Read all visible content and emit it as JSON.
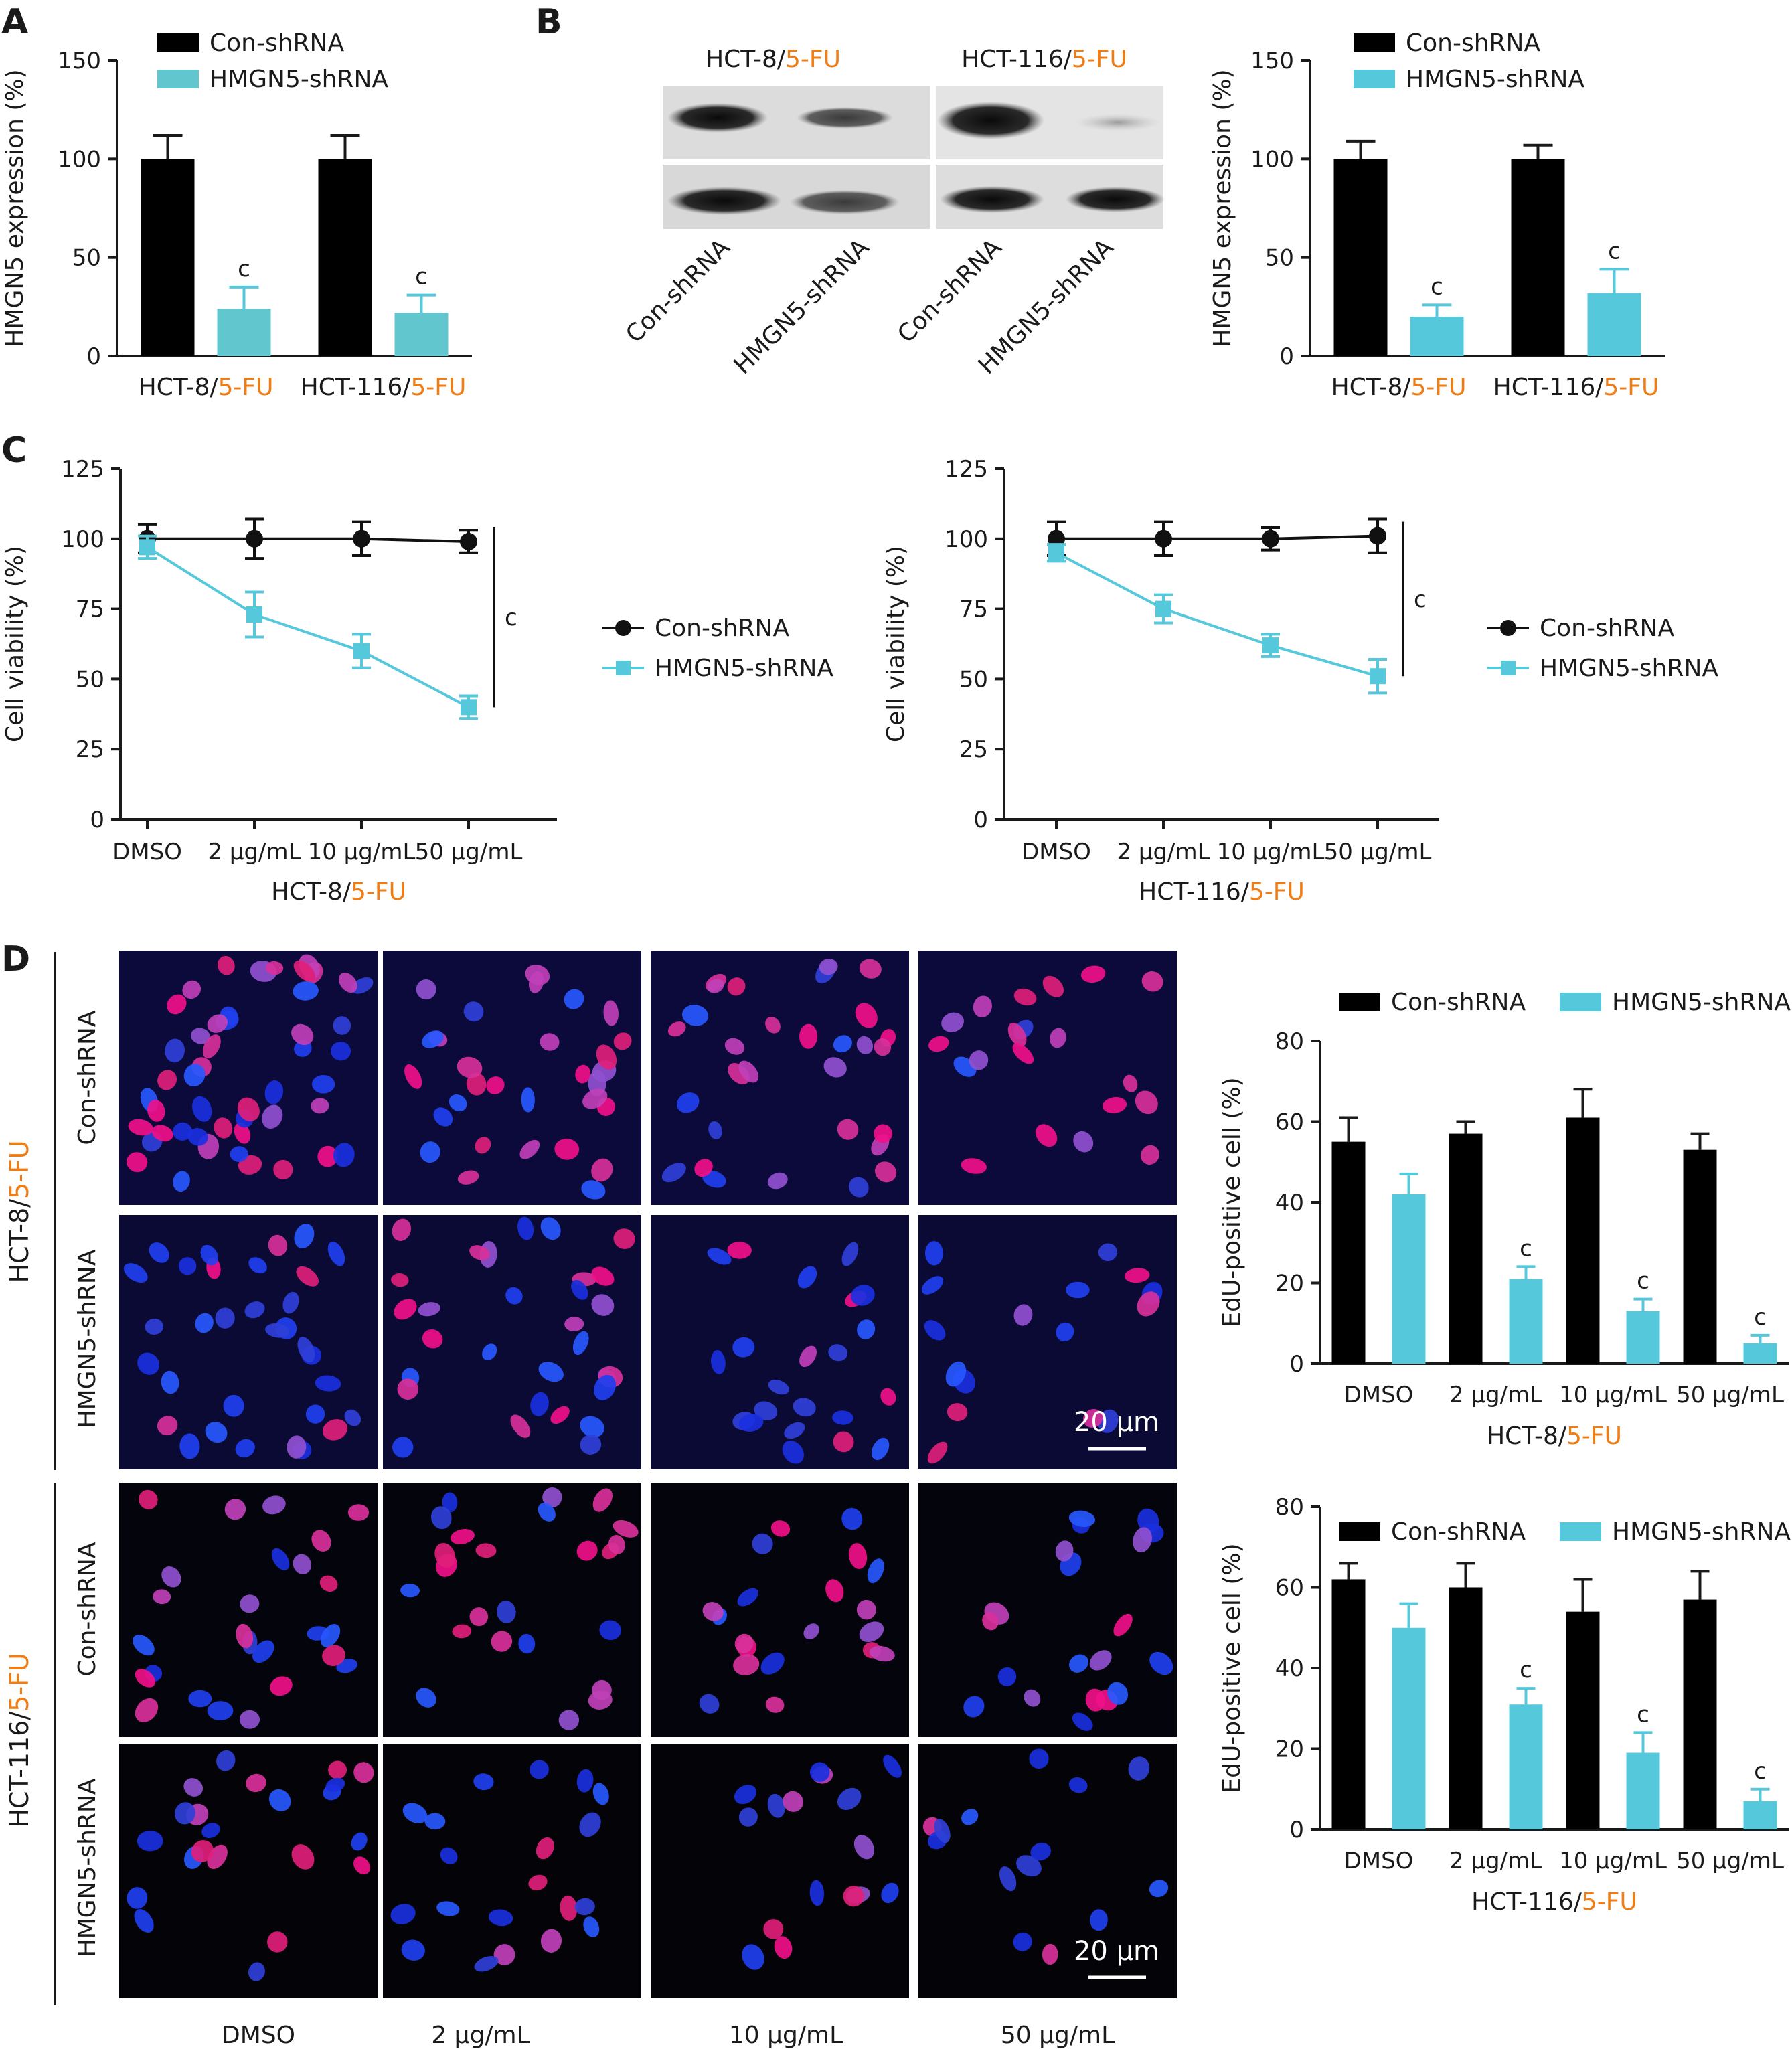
{
  "figure": {
    "panel_labels": [
      "A",
      "B",
      "C",
      "D"
    ],
    "accent_color": "#f07c14",
    "con_color": "#000000",
    "kd_color": "#56c8dc",
    "kd_color_alt": "#62c6cf"
  },
  "blot": {
    "header_hct8": "HCT-8/",
    "header_hct116": "HCT-116/",
    "header_fu": "5-FU",
    "lane_labels": [
      "Con-shRNA",
      "HMGN5-shRNA",
      "Con-shRNA",
      "HMGN5-shRNA"
    ]
  },
  "micro": {
    "row_labels": [
      "Con-shRNA",
      "HMGN5-shRNA",
      "Con-shRNA",
      "HMGN5-shRNA"
    ],
    "group_hct8": "HCT-8/",
    "group_hct116": "HCT-116/",
    "group_fu": "5-FU",
    "col_labels": [
      "DMSO",
      "2 μg/mL",
      "10 μg/mL",
      "50 μg/mL"
    ],
    "scale_bar": "20 μm"
  },
  "chart_data": [
    {
      "panel": "A",
      "type": "bar",
      "categories": [
        "HCT-8/",
        "HCT-116/"
      ],
      "category_suffix": "5-FU",
      "ylabel": "HMGN5 expression (%)",
      "ylim": [
        0,
        150
      ],
      "yticks": [
        0,
        50,
        100,
        150
      ],
      "legend": [
        "Con-shRNA",
        "HMGN5-shRNA"
      ],
      "series": [
        {
          "name": "Con-shRNA",
          "values": [
            100,
            100
          ],
          "errors": [
            12,
            12
          ]
        },
        {
          "name": "HMGN5-shRNA",
          "values": [
            24,
            22
          ],
          "errors": [
            11,
            9
          ]
        }
      ],
      "annotations": [
        "c",
        "c"
      ]
    },
    {
      "panel": "B",
      "type": "bar",
      "categories": [
        "HCT-8/",
        "HCT-116/"
      ],
      "category_suffix": "5-FU",
      "ylabel": "HMGN5 expression (%)",
      "ylim": [
        0,
        150
      ],
      "yticks": [
        0,
        50,
        100,
        150
      ],
      "legend": [
        "Con-shRNA",
        "HMGN5-shRNA"
      ],
      "series": [
        {
          "name": "Con-shRNA",
          "values": [
            100,
            100
          ],
          "errors": [
            9,
            7
          ]
        },
        {
          "name": "HMGN5-shRNA",
          "values": [
            20,
            32
          ],
          "errors": [
            6,
            12
          ]
        }
      ],
      "annotations": [
        "c",
        "c"
      ]
    },
    {
      "panel": "C",
      "type": "line",
      "x": [
        "DMSO",
        "2 μg/mL",
        "10 μg/mL",
        "50 μg/mL"
      ],
      "xlabel_prefix": "HCT-8/",
      "xlabel_suffix": "5-FU",
      "ylabel": "Cell viability (%)",
      "ylim": [
        0,
        125
      ],
      "yticks": [
        0,
        25,
        50,
        75,
        100,
        125
      ],
      "series": [
        {
          "name": "Con-shRNA",
          "values": [
            100,
            100,
            100,
            99
          ],
          "errors": [
            5,
            7,
            6,
            4
          ]
        },
        {
          "name": "HMGN5-shRNA",
          "values": [
            97,
            73,
            60,
            40
          ],
          "errors": [
            4,
            8,
            6,
            4
          ]
        }
      ],
      "annotation": "c"
    },
    {
      "panel": "C",
      "type": "line",
      "x": [
        "DMSO",
        "2 μg/mL",
        "10 μg/mL",
        "50 μg/mL"
      ],
      "xlabel_prefix": "HCT-116/",
      "xlabel_suffix": "5-FU",
      "ylabel": "Cell viability (%)",
      "ylim": [
        0,
        125
      ],
      "yticks": [
        0,
        25,
        50,
        75,
        100,
        125
      ],
      "series": [
        {
          "name": "Con-shRNA",
          "values": [
            100,
            100,
            100,
            101
          ],
          "errors": [
            6,
            6,
            4,
            6
          ]
        },
        {
          "name": "HMGN5-shRNA",
          "values": [
            95,
            75,
            62,
            51
          ],
          "errors": [
            3,
            5,
            4,
            6
          ]
        }
      ],
      "annotation": "c"
    },
    {
      "panel": "D",
      "type": "bar",
      "categories": [
        "DMSO",
        "2 μg/mL",
        "10 μg/mL",
        "50 μg/mL"
      ],
      "xlabel_prefix": "HCT-8/",
      "xlabel_suffix": "5-FU",
      "ylabel": "EdU-positive cell (%)",
      "ylim": [
        0,
        80
      ],
      "yticks": [
        0,
        20,
        40,
        60,
        80
      ],
      "legend": [
        "Con-shRNA",
        "HMGN5-shRNA"
      ],
      "series": [
        {
          "name": "Con-shRNA",
          "values": [
            55,
            57,
            61,
            53
          ],
          "errors": [
            6,
            3,
            7,
            4
          ]
        },
        {
          "name": "HMGN5-shRNA",
          "values": [
            42,
            21,
            13,
            5
          ],
          "errors": [
            5,
            3,
            3,
            2
          ]
        }
      ],
      "annotations": [
        "",
        "c",
        "c",
        "c"
      ]
    },
    {
      "panel": "D",
      "type": "bar",
      "categories": [
        "DMSO",
        "2 μg/mL",
        "10 μg/mL",
        "50 μg/mL"
      ],
      "xlabel_prefix": "HCT-116/",
      "xlabel_suffix": "5-FU",
      "ylabel": "EdU-positive cell (%)",
      "ylim": [
        0,
        80
      ],
      "yticks": [
        0,
        20,
        40,
        60,
        80
      ],
      "legend": [
        "Con-shRNA",
        "HMGN5-shRNA"
      ],
      "series": [
        {
          "name": "Con-shRNA",
          "values": [
            62,
            60,
            54,
            57
          ],
          "errors": [
            4,
            6,
            8,
            7
          ]
        },
        {
          "name": "HMGN5-shRNA",
          "values": [
            50,
            31,
            19,
            7
          ],
          "errors": [
            6,
            4,
            5,
            3
          ]
        }
      ],
      "annotations": [
        "",
        "c",
        "c",
        "c"
      ]
    }
  ]
}
